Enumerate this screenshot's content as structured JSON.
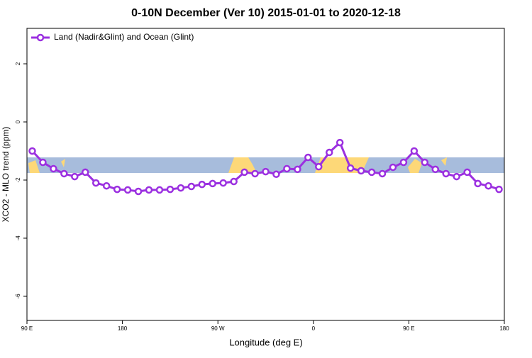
{
  "chart_data": {
    "type": "line",
    "title": "0-10N December (Ver 10)   2015-01-01 to 2020-12-18",
    "x_label": "Longitude (deg E)",
    "y_label": "XCO2 - MLO trend (ppm)",
    "x": [
      95,
      105,
      115,
      125,
      135,
      145,
      155,
      165,
      175,
      185,
      195,
      205,
      215,
      225,
      235,
      245,
      255,
      265,
      275,
      285,
      295,
      305,
      315,
      325,
      335,
      345,
      355,
      365,
      375,
      385,
      395,
      405,
      415,
      425,
      435,
      445,
      455,
      465,
      475,
      485,
      495,
      505,
      515,
      525,
      535
    ],
    "series": [
      {
        "name": "Land (Nadir&Glint) and Ocean (Glint)",
        "color": "#9b30e0",
        "values": [
          -1.0,
          -1.39,
          -1.61,
          -1.78,
          -1.88,
          -1.73,
          -2.1,
          -2.2,
          -2.32,
          -2.34,
          -2.39,
          -2.34,
          -2.34,
          -2.32,
          -2.27,
          -2.22,
          -2.15,
          -2.12,
          -2.1,
          -2.05,
          -1.73,
          -1.78,
          -1.71,
          -1.8,
          -1.61,
          -1.63,
          -1.22,
          -1.54,
          -1.05,
          -0.71,
          -1.59,
          -1.68,
          -1.73,
          -1.78,
          -1.56,
          -1.39,
          -1.0,
          -1.39,
          -1.63,
          -1.78,
          -1.88,
          -1.73,
          -2.12,
          -2.2,
          -2.32
        ]
      }
    ],
    "xlim": [
      90,
      540
    ],
    "xticks": [
      {
        "value": 90,
        "label": "90 E"
      },
      {
        "value": 180,
        "label": "180"
      },
      {
        "value": 270,
        "label": "90 W"
      },
      {
        "value": 360,
        "label": "0"
      },
      {
        "value": 450,
        "label": "90 E"
      },
      {
        "value": 540,
        "label": "180"
      }
    ],
    "ylim": [
      -6.83,
      3.22
    ],
    "yticks": [
      2,
      0,
      -2,
      -4,
      -6
    ],
    "legend": "top-left"
  }
}
